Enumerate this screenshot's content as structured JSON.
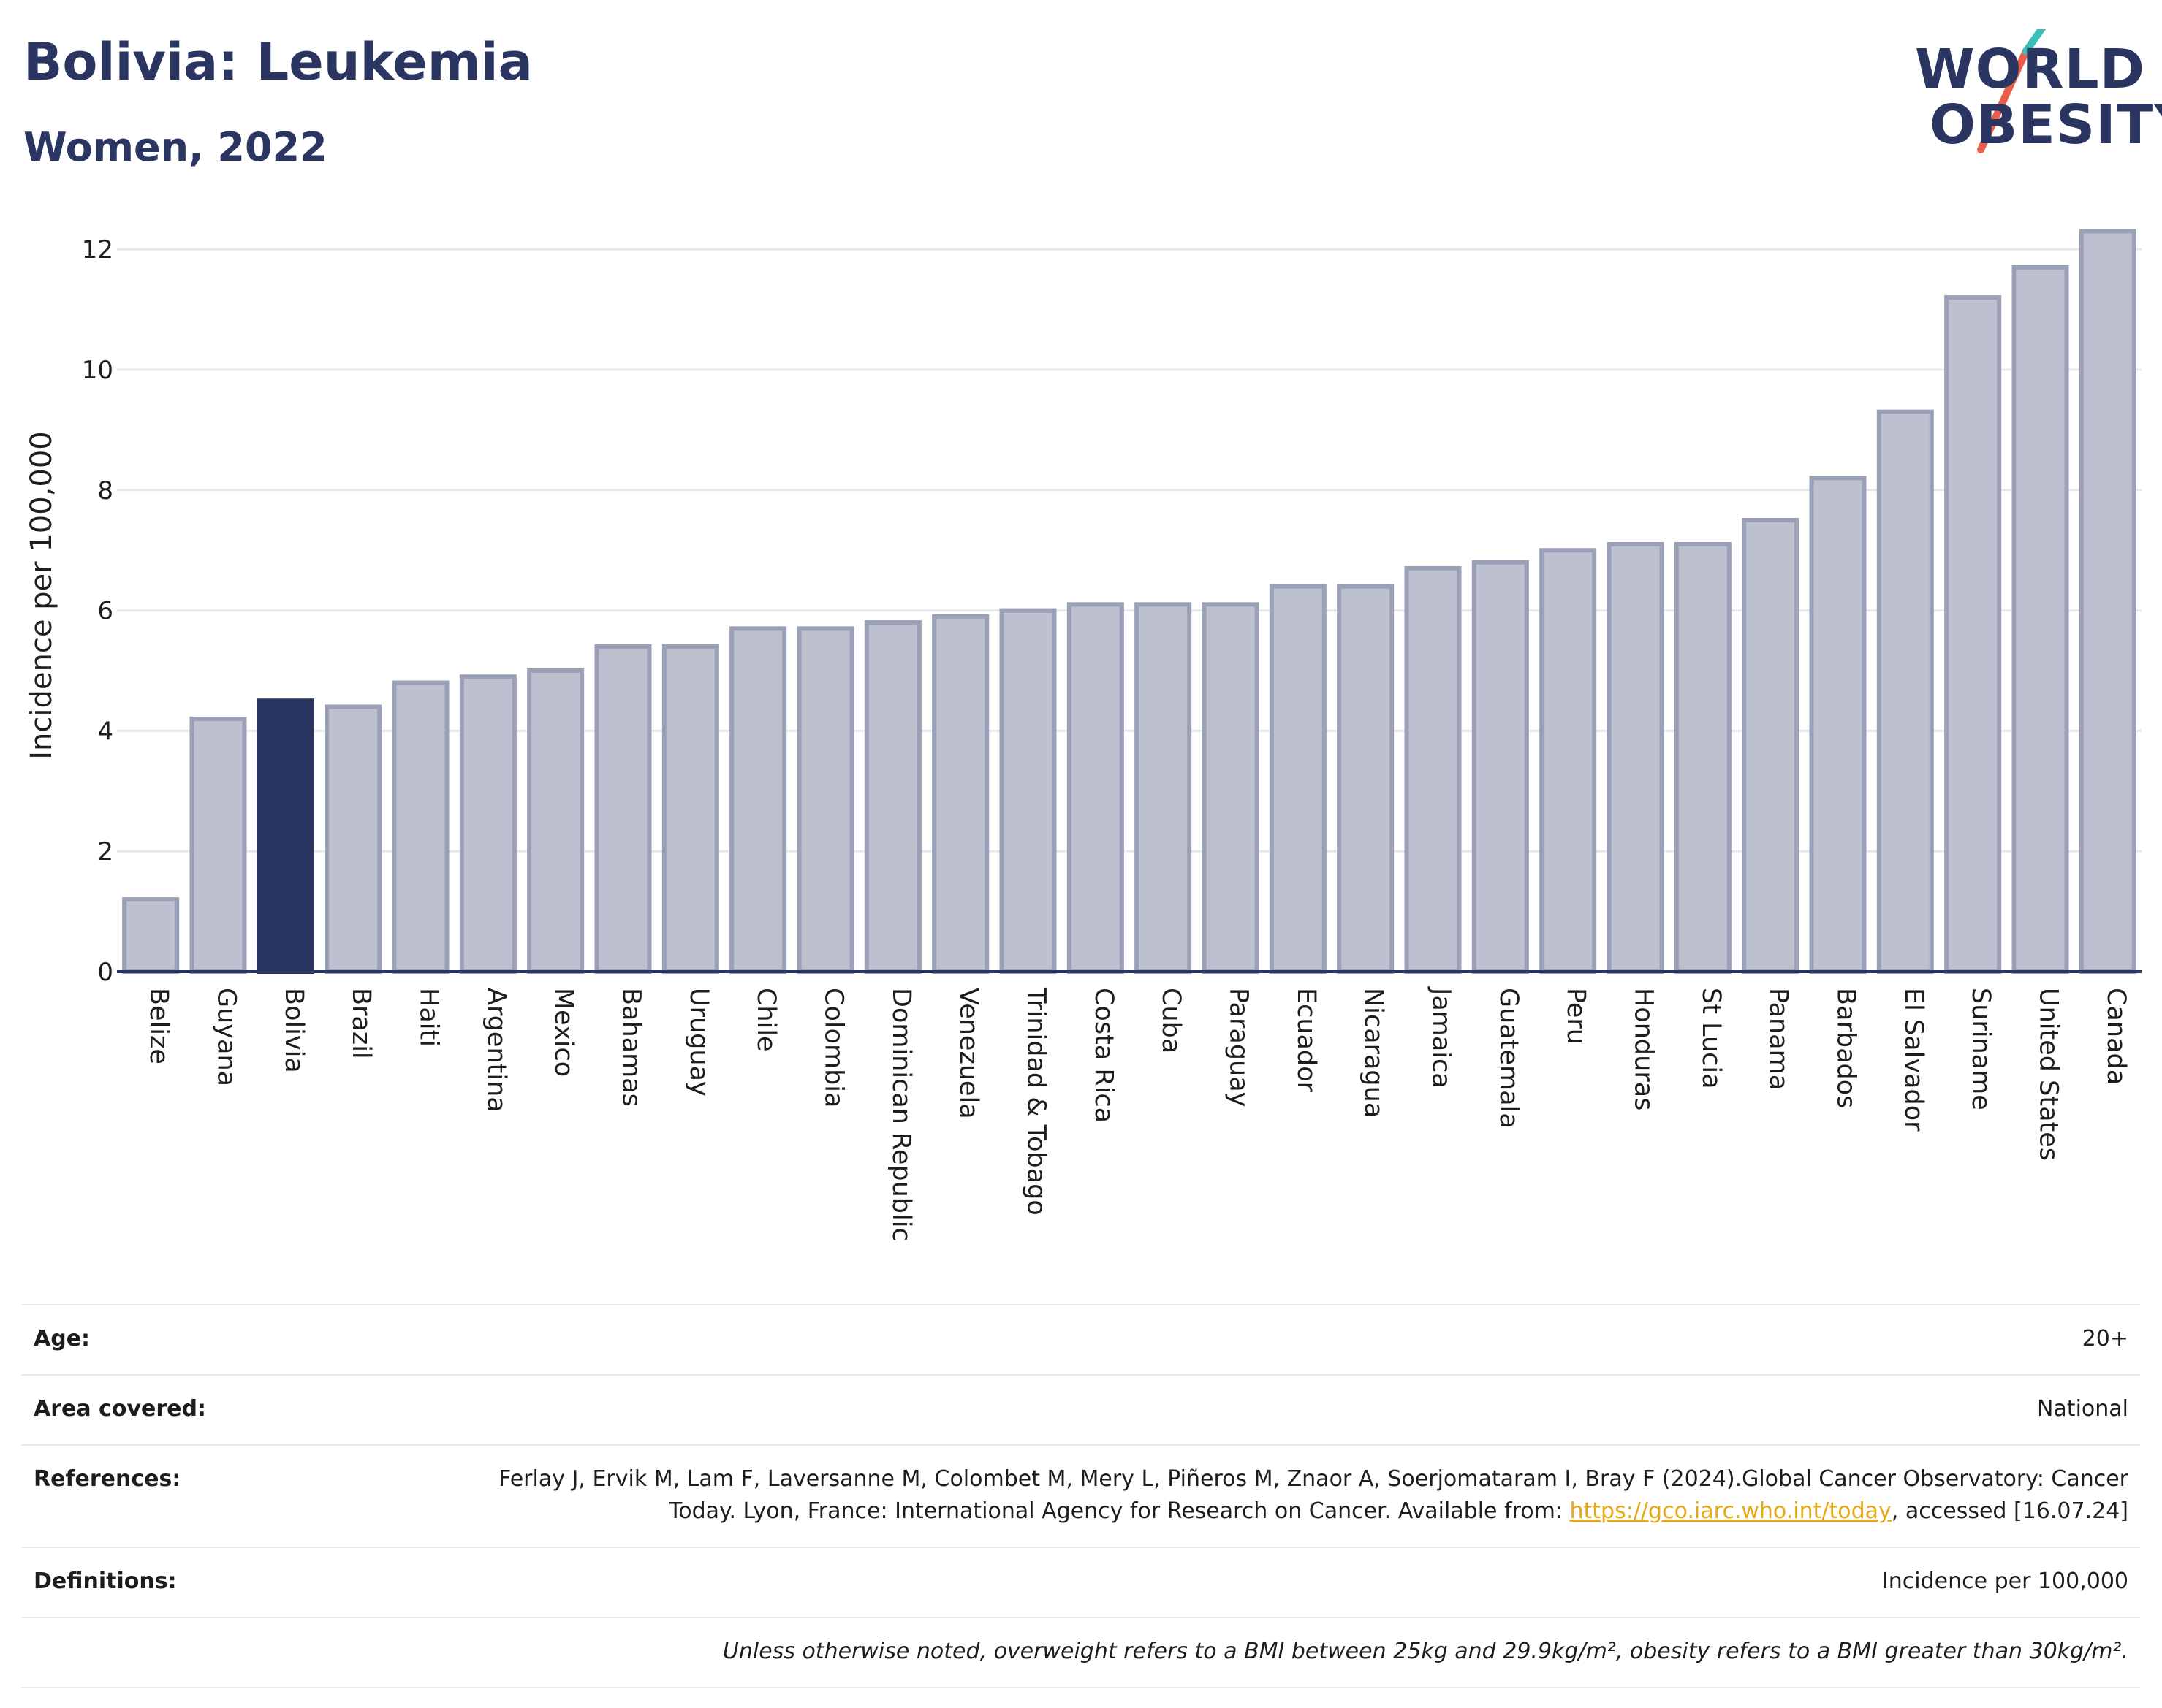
{
  "header": {
    "title": "Bolivia: Leukemia",
    "subtitle": "Women, 2022",
    "logo_line1": "WORLD",
    "logo_line2": "OBESITY"
  },
  "chart_data": {
    "type": "bar",
    "ylabel": "Incidence per 100,000",
    "ylim": [
      0,
      12.5
    ],
    "yticks": [
      0,
      2,
      4,
      6,
      8,
      10,
      12
    ],
    "grid": true,
    "highlight": "Bolivia",
    "colors": {
      "bar": "#bcc0cf",
      "bar_border": "#9aa0b6",
      "highlight": "#2b3561",
      "grid": "#e6e8ee",
      "axis": "#2b3561"
    },
    "categories": [
      "Belize",
      "Guyana",
      "Bolivia",
      "Brazil",
      "Haiti",
      "Argentina",
      "Mexico",
      "Bahamas",
      "Uruguay",
      "Chile",
      "Colombia",
      "Dominican Republic",
      "Venezuela",
      "Trinidad & Tobago",
      "Costa Rica",
      "Cuba",
      "Paraguay",
      "Ecuador",
      "Nicaragua",
      "Jamaica",
      "Guatemala",
      "Peru",
      "Honduras",
      "St Lucia",
      "Panama",
      "Barbados",
      "El Salvador",
      "Suriname",
      "United States",
      "Canada"
    ],
    "values": [
      1.2,
      4.2,
      4.5,
      4.4,
      4.8,
      4.9,
      5.0,
      5.4,
      5.4,
      5.7,
      5.7,
      5.8,
      5.9,
      6.0,
      6.1,
      6.1,
      6.1,
      6.4,
      6.4,
      6.7,
      6.8,
      7.0,
      7.1,
      7.1,
      7.5,
      8.2,
      9.3,
      11.2,
      11.7,
      12.3
    ]
  },
  "meta": {
    "age_label": "Age:",
    "age_value": "20+",
    "area_label": "Area covered:",
    "area_value": "National",
    "references_label": "References:",
    "references_text": "Ferlay J, Ervik M, Lam F, Laversanne M, Colombet M, Mery L, Piñeros M, Znaor A, Soerjomataram I, Bray F (2024).Global Cancer Observatory: Cancer Today. Lyon, France: International Agency for Research on Cancer. Available from:",
    "references_link": "https://gco.iarc.who.int/today",
    "references_suffix": ", accessed [16.07.24]",
    "definitions_label": "Definitions:",
    "definitions_value": "Incidence per 100,000",
    "note": "Unless otherwise noted, overweight refers to a BMI between 25kg and 29.9kg/m², obesity refers to a BMI greater than 30kg/m²."
  }
}
